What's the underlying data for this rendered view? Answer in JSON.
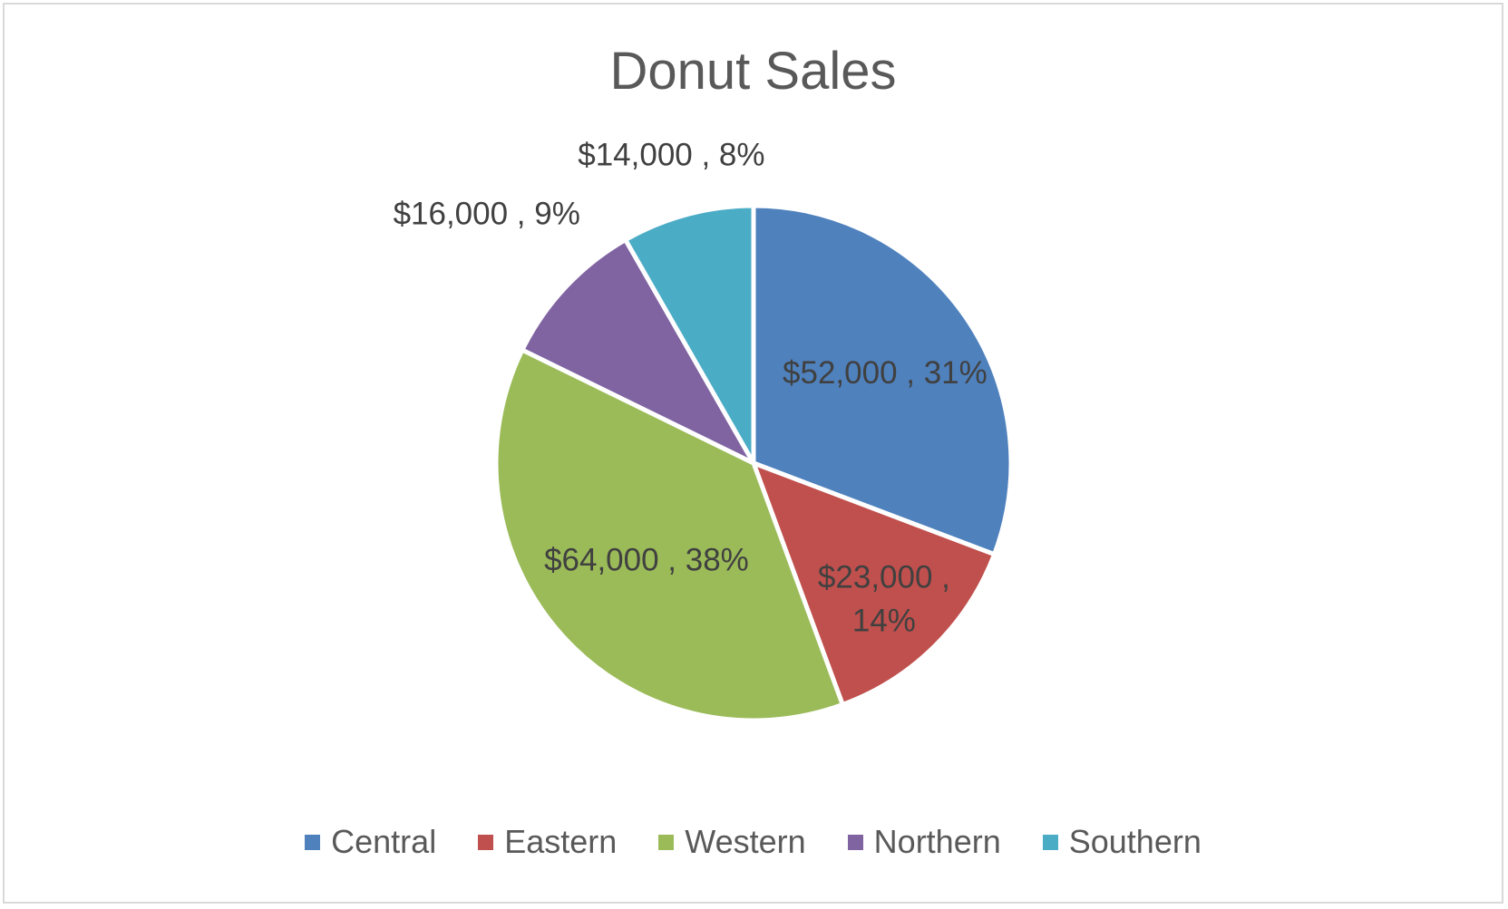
{
  "chart_data": {
    "type": "pie",
    "title": "Donut Sales",
    "categories": [
      "Central",
      "Eastern",
      "Western",
      "Northern",
      "Southern"
    ],
    "values": [
      52000,
      23000,
      64000,
      16000,
      14000
    ],
    "percent_labels": [
      "31%",
      "14%",
      "38%",
      "9%",
      "8%"
    ],
    "data_labels": [
      "$52,000 , 31%",
      "$23,000 , 14%",
      "$64,000 , 38%",
      "$16,000 , 9%",
      "$14,000 , 8%"
    ],
    "colors": [
      "#4f81bd",
      "#c0504d",
      "#9bbb59",
      "#8064a2",
      "#4bacc6"
    ],
    "start_angle_deg": 0,
    "direction": "clockwise",
    "legend_position": "bottom"
  }
}
